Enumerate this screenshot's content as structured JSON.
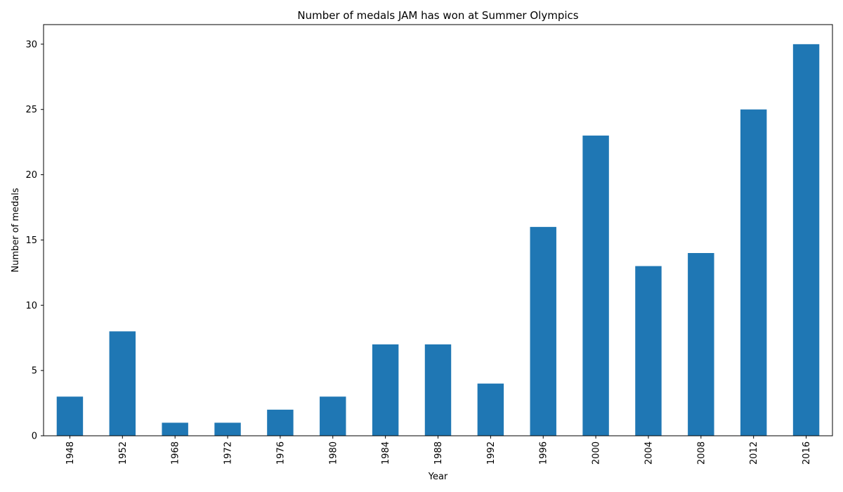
{
  "chart_data": {
    "type": "bar",
    "title": "Number of medals JAM has won at Summer Olympics",
    "xlabel": "Year",
    "ylabel": "Number of medals",
    "categories": [
      "1948",
      "1952",
      "1968",
      "1972",
      "1976",
      "1980",
      "1984",
      "1988",
      "1992",
      "1996",
      "2000",
      "2004",
      "2008",
      "2012",
      "2016"
    ],
    "values": [
      3,
      8,
      1,
      1,
      2,
      3,
      7,
      7,
      4,
      16,
      23,
      13,
      14,
      25,
      30
    ],
    "ylim": [
      0,
      31.5
    ],
    "yticks": [
      0,
      5,
      10,
      15,
      20,
      25,
      30
    ],
    "grid": false,
    "legend": "none",
    "bar_color": "#1f77b4"
  }
}
